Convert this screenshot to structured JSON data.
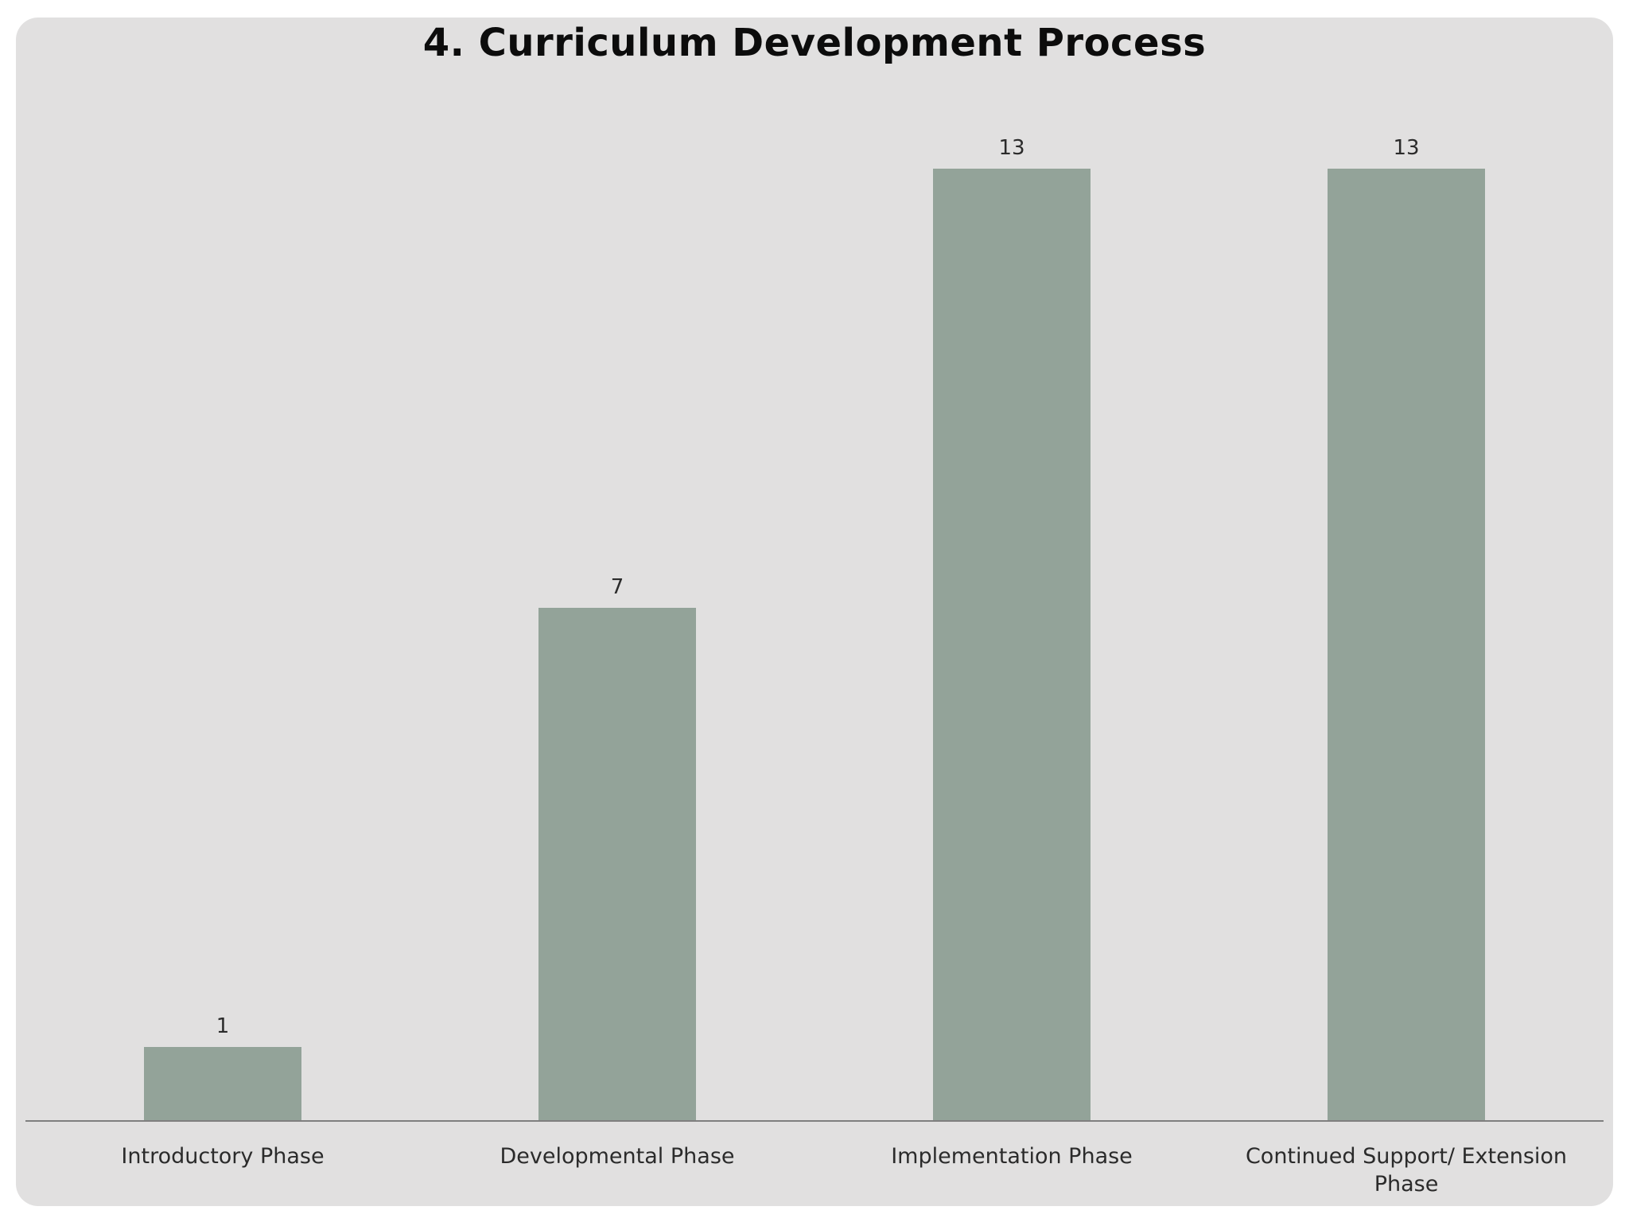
{
  "slide": {
    "background": "#e1e0e0"
  },
  "chart_data": {
    "type": "bar",
    "title": "4.  Curriculum Development Process",
    "categories": [
      "Introductory Phase",
      "Developmental Phase",
      "Implementation Phase",
      "Continued Support/ Extension Phase"
    ],
    "values": [
      1,
      7,
      13,
      13
    ],
    "data_labels": [
      "1",
      "7",
      "13",
      "13"
    ],
    "xlabel": "",
    "ylabel": "",
    "ylim": [
      0,
      13
    ],
    "grid": false,
    "legend": "none",
    "bar_color": "#93a399",
    "axis_color": "#7f7f7f"
  }
}
